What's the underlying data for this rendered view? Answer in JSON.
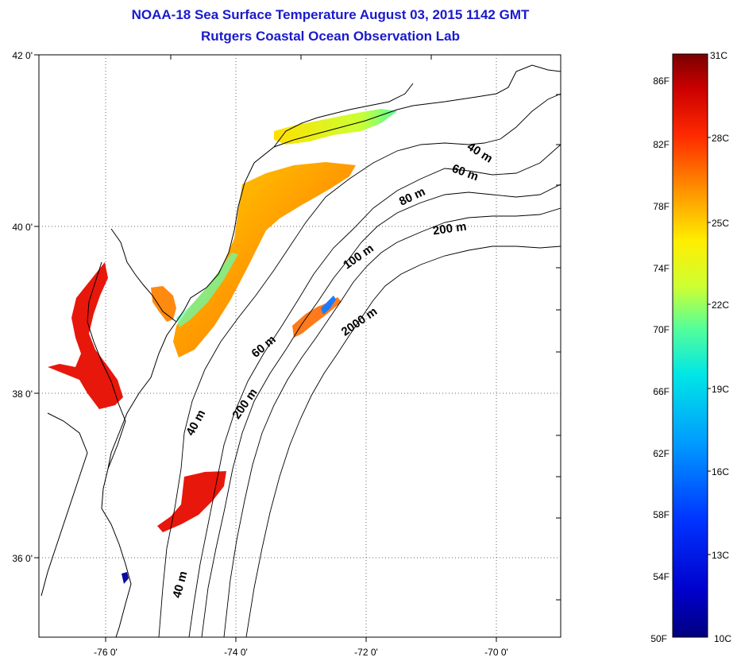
{
  "header": {
    "title": "NOAA-18 Sea Surface Temperature August 03, 2015 1142 GMT",
    "subtitle": "Rutgers Coastal Ocean Observation Lab"
  },
  "map": {
    "lat_labels": [
      "42 0'",
      "40 0'",
      "38 0'",
      "36 0'"
    ],
    "lon_labels": [
      "-76 0'",
      "-74 0'",
      "-72 0'",
      "-70 0'"
    ],
    "lat_range": [
      35,
      42
    ],
    "lon_range": [
      -77,
      -69
    ],
    "depth_labels": [
      "40 m",
      "60 m",
      "80 m",
      "200 m",
      "100 m",
      "2000 m",
      "60 m",
      "200 m",
      "40 m",
      "40 m"
    ]
  },
  "colorbar": {
    "f_labels": [
      "86F",
      "82F",
      "78F",
      "74F",
      "70F",
      "66F",
      "62F",
      "58F",
      "54F",
      "50F"
    ],
    "c_labels": [
      "31C",
      "28C",
      "25C",
      "22C",
      "19C",
      "16C",
      "13C",
      "10C"
    ],
    "colors": [
      "#7a0000",
      "#d40000",
      "#ff2a00",
      "#ff7a00",
      "#ffcc00",
      "#ccff33",
      "#55ff99",
      "#00e6e6",
      "#0099ff",
      "#0033ff",
      "#0000cc",
      "#000080"
    ]
  }
}
